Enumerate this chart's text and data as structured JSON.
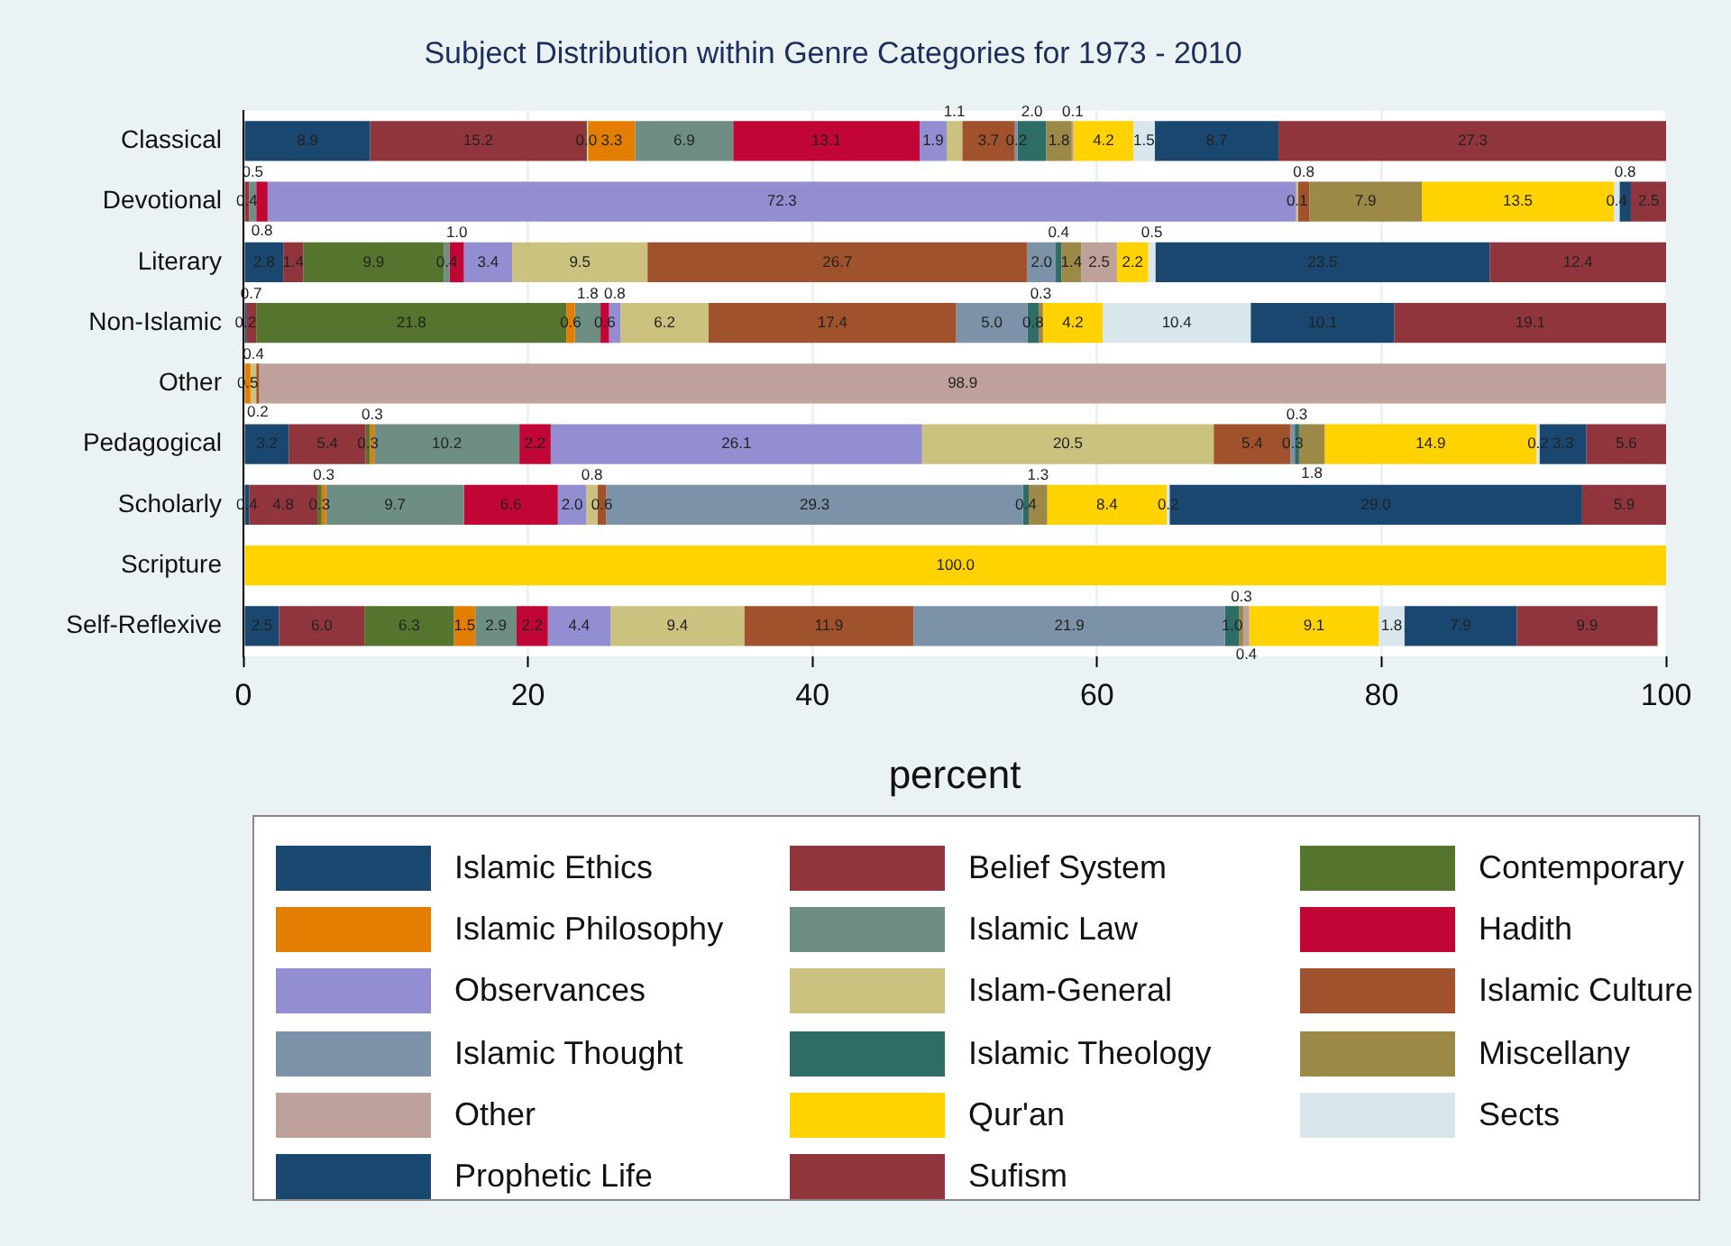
{
  "chart_data": {
    "type": "bar",
    "orientation": "horizontal",
    "stacked": true,
    "title": "Subject Distribution within Genre Categories for 1973 - 2010",
    "xlabel": "percent",
    "categories": [
      "Classical",
      "Devotional",
      "Literary",
      "Non-Islamic",
      "Other",
      "Pedagogical",
      "Scholarly",
      "Scripture",
      "Self-Reflexive"
    ],
    "xlim": [
      0,
      100
    ],
    "xticks": [
      0,
      20,
      40,
      60,
      80,
      100
    ],
    "grid": "x",
    "legend": "bottom",
    "series": [
      {
        "name": "Islamic Ethics",
        "color": "#1a476f",
        "values": [
          8.9,
          null,
          2.8,
          0.2,
          null,
          3.2,
          0.4,
          null,
          2.5
        ],
        "value_labels": [
          "8.9",
          null,
          "2.8",
          "0.2",
          null,
          "3.2",
          "0.4",
          null,
          "2.5"
        ]
      },
      {
        "name": "Belief System",
        "color": "#90353b",
        "values": [
          15.2,
          0.4,
          1.4,
          0.7,
          null,
          5.4,
          4.8,
          null,
          6.0
        ],
        "value_labels": [
          "15.2",
          "0.4",
          "1.4",
          "0.7",
          null,
          "5.4",
          "4.8",
          null,
          "6.0"
        ]
      },
      {
        "name": "Contemporary",
        "color": "#55752f",
        "values": [
          0.0,
          null,
          9.9,
          21.8,
          null,
          0.3,
          0.3,
          null,
          6.3
        ],
        "value_labels": [
          "0.0",
          null,
          "9.9",
          "21.8",
          null,
          "0.3",
          "0.3",
          null,
          "6.3"
        ]
      },
      {
        "name": "Islamic Philosophy",
        "color": "#e37e00",
        "values": [
          3.3,
          null,
          null,
          0.6,
          0.5,
          0.3,
          0.3,
          null,
          1.5
        ],
        "value_labels": [
          "3.3",
          null,
          null,
          "0.6",
          "0.5",
          "0.3",
          "0.3",
          null,
          "1.5"
        ]
      },
      {
        "name": "Islamic Law",
        "color": "#6e8e84",
        "values": [
          6.9,
          0.5,
          0.4,
          1.8,
          null,
          10.2,
          9.7,
          null,
          2.9
        ],
        "value_labels": [
          "6.9",
          "0.5",
          "0.4",
          "1.8",
          null,
          "10.2",
          "9.7",
          null,
          "2.9"
        ]
      },
      {
        "name": "Hadith",
        "color": "#c10534",
        "values": [
          13.1,
          0.8,
          1.0,
          0.6,
          null,
          2.2,
          6.6,
          null,
          2.2
        ],
        "value_labels": [
          "13.1",
          "0.8",
          "1.0",
          "0.6",
          null,
          "2.2",
          "6.6",
          null,
          "2.2"
        ]
      },
      {
        "name": "Observances",
        "color": "#938dd2",
        "values": [
          1.9,
          72.3,
          3.4,
          0.8,
          null,
          26.1,
          2.0,
          null,
          4.4
        ],
        "value_labels": [
          "1.9",
          "72.3",
          "3.4",
          "0.8",
          null,
          "26.1",
          "2.0",
          null,
          "4.4"
        ]
      },
      {
        "name": "Islam-General",
        "color": "#cac27e",
        "values": [
          1.1,
          0.1,
          9.5,
          6.2,
          0.4,
          20.5,
          0.8,
          null,
          9.4
        ],
        "value_labels": [
          "1.1",
          "0.1",
          "9.5",
          "6.2",
          "0.4",
          "20.5",
          "0.8",
          null,
          "9.4"
        ]
      },
      {
        "name": "Islamic Culture",
        "color": "#a0522d",
        "values": [
          3.7,
          0.8,
          26.7,
          17.4,
          0.2,
          5.4,
          0.6,
          null,
          11.9
        ],
        "value_labels": [
          "3.7",
          "0.8",
          "26.7",
          "17.4",
          "0.2",
          "5.4",
          "0.6",
          null,
          "11.9"
        ]
      },
      {
        "name": "Islamic Thought",
        "color": "#7b92a8",
        "values": [
          0.2,
          null,
          2.0,
          5.0,
          null,
          0.3,
          29.3,
          null,
          21.9
        ],
        "value_labels": [
          "0.2",
          null,
          "2.0",
          "5.0",
          null,
          "0.3",
          "29.3",
          null,
          "21.9"
        ]
      },
      {
        "name": "Islamic Theology",
        "color": "#2d6d66",
        "values": [
          2.0,
          null,
          0.4,
          0.8,
          null,
          0.3,
          0.4,
          null,
          1.0
        ],
        "value_labels": [
          "2.0",
          null,
          "0.4",
          "0.8",
          null,
          "0.3",
          "0.4",
          null,
          "1.0"
        ]
      },
      {
        "name": "Miscellany",
        "color": "#9c8847",
        "values": [
          1.8,
          7.9,
          1.4,
          0.3,
          null,
          1.8,
          1.3,
          null,
          0.3
        ],
        "value_labels": [
          "1.8",
          "7.9",
          "1.4",
          "0.3",
          null,
          "1.8",
          "1.3",
          null,
          "0.3"
        ]
      },
      {
        "name": "Other",
        "color": "#bfa19c",
        "values": [
          0.1,
          null,
          2.5,
          null,
          98.9,
          null,
          null,
          null,
          0.4
        ],
        "value_labels": [
          "0.1",
          null,
          "2.5",
          null,
          "98.9",
          null,
          null,
          null,
          "0.4"
        ]
      },
      {
        "name": "Qur'an",
        "color": "#ffd200",
        "values": [
          4.2,
          13.5,
          2.2,
          4.2,
          null,
          14.9,
          8.4,
          100.0,
          9.1
        ],
        "value_labels": [
          "4.2",
          "13.5",
          "2.2",
          "4.2",
          null,
          "14.9",
          "8.4",
          "100.0",
          "9.1"
        ]
      },
      {
        "name": "Sects",
        "color": "#d9e6eb",
        "values": [
          1.5,
          0.4,
          0.5,
          10.4,
          null,
          0.2,
          0.2,
          null,
          1.8
        ],
        "value_labels": [
          "1.5",
          "0.4",
          "0.5",
          "10.4",
          null,
          "0.2",
          "0.2",
          null,
          "1.8"
        ]
      },
      {
        "name": "Prophetic Life",
        "color": "#1a476f",
        "values": [
          8.7,
          0.8,
          23.5,
          10.1,
          null,
          3.3,
          29.0,
          null,
          7.9
        ],
        "value_labels": [
          "8.7",
          "0.8",
          "23.5",
          "10.1",
          null,
          "3.3",
          "29.0",
          null,
          "7.9"
        ]
      },
      {
        "name": "Sufism",
        "color": "#90353b",
        "values": [
          27.3,
          2.5,
          12.4,
          19.1,
          null,
          5.6,
          5.9,
          null,
          9.9
        ],
        "value_labels": [
          "27.3",
          "2.5",
          "12.4",
          "19.1",
          null,
          "5.6",
          "5.9",
          null,
          "9.9"
        ]
      }
    ]
  }
}
